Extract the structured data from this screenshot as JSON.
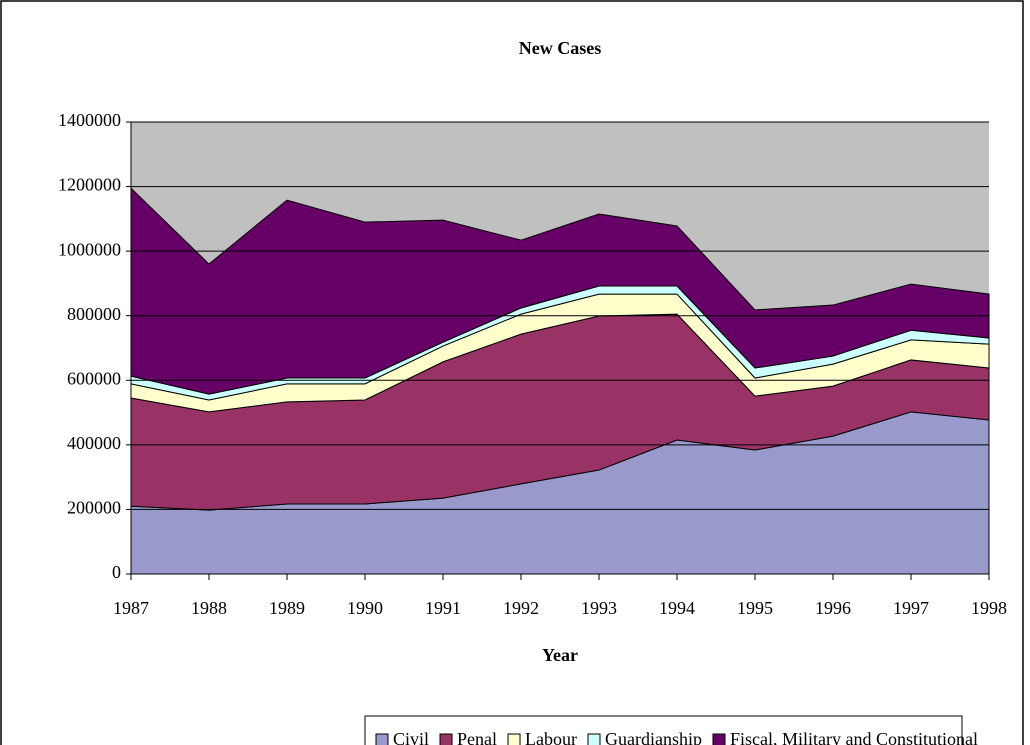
{
  "chart_data": {
    "type": "stacked_area",
    "title": "New Cases",
    "x_label": "Year",
    "categories": [
      "1987",
      "1988",
      "1989",
      "1990",
      "1991",
      "1992",
      "1993",
      "1994",
      "1995",
      "1996",
      "1997",
      "1998"
    ],
    "series": [
      {
        "name": "Civil",
        "color": "#9999cc",
        "values": [
          210000,
          198000,
          217000,
          217000,
          235000,
          279000,
          322000,
          415000,
          384000,
          427000,
          502000,
          477000
        ]
      },
      {
        "name": "Penal",
        "color": "#993366",
        "values": [
          335000,
          304000,
          316000,
          322000,
          422000,
          464000,
          477000,
          390000,
          167000,
          155000,
          161000,
          161000
        ]
      },
      {
        "name": "Labour",
        "color": "#ffffcc",
        "values": [
          44000,
          37000,
          56000,
          50000,
          49000,
          62000,
          68000,
          62000,
          56000,
          68000,
          62000,
          74000
        ]
      },
      {
        "name": "Guardianship",
        "color": "#ccffff",
        "values": [
          24000,
          18000,
          18000,
          18000,
          12000,
          19000,
          25000,
          25000,
          31000,
          25000,
          30000,
          19000
        ]
      },
      {
        "name": "Fiscal, Military and Constitutional",
        "color": "#660066",
        "values": [
          582000,
          403000,
          551000,
          483000,
          378000,
          210000,
          223000,
          186000,
          180000,
          158000,
          143000,
          136000
        ]
      }
    ],
    "ylim": [
      0,
      1400000
    ],
    "yticks": [
      0,
      200000,
      400000,
      600000,
      800000,
      1000000,
      1200000,
      1400000
    ],
    "grid": true,
    "plot_background": "#c0c0c0",
    "legend": "bottom"
  }
}
